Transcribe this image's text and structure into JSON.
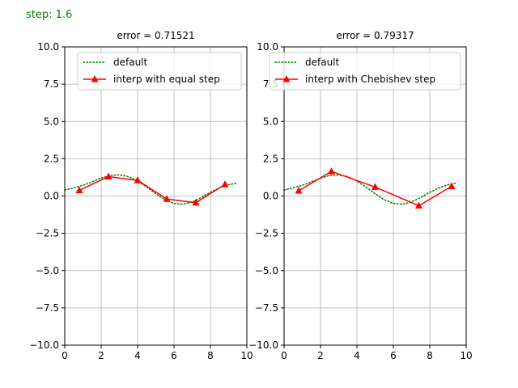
{
  "header": {
    "step_text": "step: 1.6"
  },
  "chart_data": [
    {
      "type": "line",
      "title": "error = 0.71521",
      "xlim": [
        0,
        10
      ],
      "ylim": [
        -10,
        10
      ],
      "xticks": [
        0,
        2,
        4,
        6,
        8,
        10
      ],
      "yticks": [
        -10,
        -7.5,
        -5,
        -2.5,
        0,
        2.5,
        5,
        7.5,
        10
      ],
      "xtick_labels": [
        "0",
        "2",
        "4",
        "6",
        "8",
        "10"
      ],
      "ytick_labels": [
        "−10.0",
        "−7.5",
        "−5.0",
        "−2.5",
        "0.0",
        "2.5",
        "5.0",
        "7.5",
        "10.0"
      ],
      "grid": true,
      "legend": "top-right",
      "series": [
        {
          "name": "default",
          "style": "dotted",
          "color": "#008000",
          "x": [
            0,
            0.5,
            1,
            1.5,
            2,
            2.5,
            3,
            3.5,
            4,
            4.5,
            5,
            5.5,
            6,
            6.5,
            7,
            7.5,
            8,
            8.5,
            9,
            9.5
          ],
          "y": [
            0.4,
            0.55,
            0.72,
            0.95,
            1.2,
            1.38,
            1.42,
            1.3,
            1.0,
            0.6,
            0.15,
            -0.25,
            -0.5,
            -0.55,
            -0.4,
            -0.1,
            0.25,
            0.55,
            0.75,
            0.88
          ]
        },
        {
          "name": "interp with equal step",
          "style": "solid-triangle",
          "color": "#ff0000",
          "x": [
            0.8,
            2.4,
            4.0,
            5.6,
            7.2,
            8.8
          ],
          "y": [
            0.38,
            1.3,
            1.05,
            -0.2,
            -0.45,
            0.78
          ]
        }
      ]
    },
    {
      "type": "line",
      "title": "error = 0.79317",
      "xlim": [
        0,
        10
      ],
      "ylim": [
        -10,
        10
      ],
      "xticks": [
        0,
        2,
        4,
        6,
        8,
        10
      ],
      "yticks": [
        -10,
        -7.5,
        -5,
        -2.5,
        0,
        2.5,
        5,
        7.5,
        10
      ],
      "xtick_labels": [
        "0",
        "2",
        "4",
        "6",
        "8",
        "10"
      ],
      "ytick_labels": [
        "−10.0",
        "−7.5",
        "−5.0",
        "−2.5",
        "0.0",
        "2.5",
        "5.0",
        "7.5",
        "10.0"
      ],
      "grid": true,
      "legend": "top-right",
      "series": [
        {
          "name": "default",
          "style": "dotted",
          "color": "#008000",
          "x": [
            0,
            0.5,
            1,
            1.5,
            2,
            2.5,
            3,
            3.5,
            4,
            4.5,
            5,
            5.5,
            6,
            6.5,
            7,
            7.5,
            8,
            8.5,
            9,
            9.5
          ],
          "y": [
            0.4,
            0.55,
            0.72,
            0.95,
            1.2,
            1.38,
            1.42,
            1.3,
            1.0,
            0.6,
            0.15,
            -0.25,
            -0.5,
            -0.55,
            -0.4,
            -0.1,
            0.25,
            0.55,
            0.75,
            0.88
          ]
        },
        {
          "name": "interp with Chebishev step",
          "style": "solid-triangle",
          "color": "#ff0000",
          "x": [
            0.8,
            2.6,
            5.0,
            7.4,
            9.2
          ],
          "y": [
            0.35,
            1.65,
            0.6,
            -0.65,
            0.65
          ]
        }
      ]
    }
  ]
}
